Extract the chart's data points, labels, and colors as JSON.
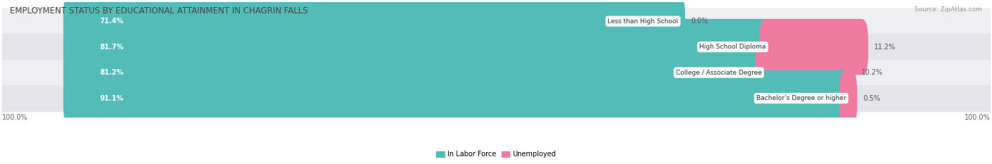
{
  "title": "EMPLOYMENT STATUS BY EDUCATIONAL ATTAINMENT IN CHAGRIN FALLS",
  "source": "Source: ZipAtlas.com",
  "categories": [
    "Less than High School",
    "High School Diploma",
    "College / Associate Degree",
    "Bachelor’s Degree or higher"
  ],
  "in_labor_force": [
    71.4,
    81.7,
    81.2,
    91.1
  ],
  "unemployed": [
    0.0,
    11.2,
    10.2,
    0.5
  ],
  "labor_force_color": "#52BDB8",
  "unemployed_color": "#F07BA0",
  "row_bg_colors": [
    "#EEEEF3",
    "#E4E4EA"
  ],
  "row_border_color": "#CCCCDA",
  "axis_label_left": "100.0%",
  "axis_label_right": "100.0%",
  "legend_labor": "In Labor Force",
  "legend_unemployed": "Unemployed",
  "title_fontsize": 8.5,
  "source_fontsize": 6.5,
  "bar_label_fontsize": 7,
  "category_fontsize": 6.5,
  "axis_fontsize": 7,
  "legend_fontsize": 7,
  "figsize": [
    14.06,
    2.33
  ],
  "dpi": 100
}
